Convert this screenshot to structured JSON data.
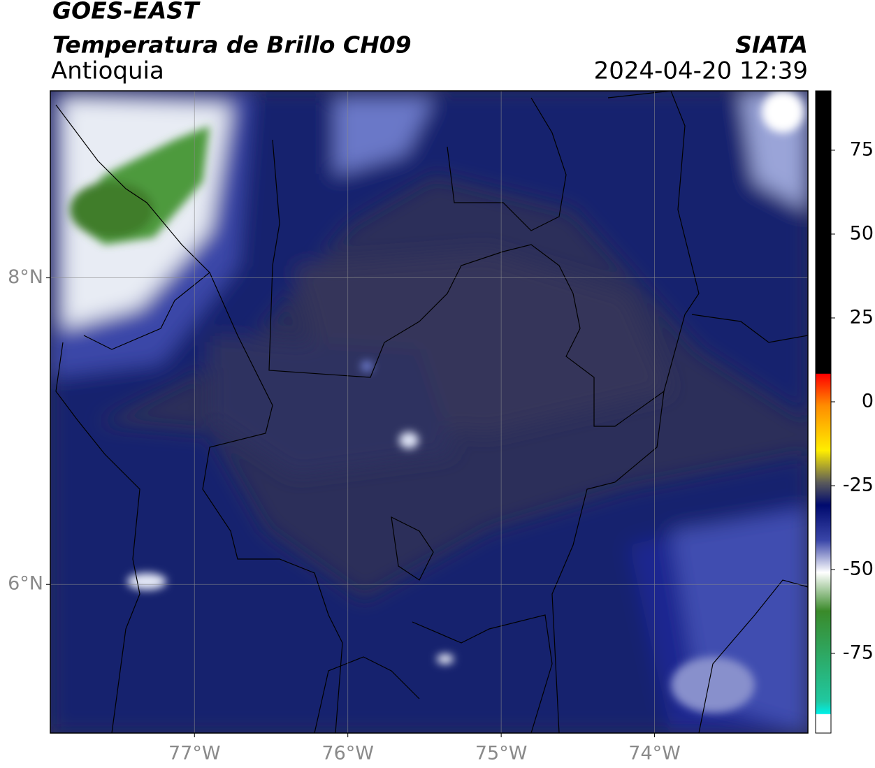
{
  "header": {
    "title": "GOES-EAST",
    "subtitle": "Temperatura de Brillo CH09",
    "region": "Antioquia",
    "source": "SIATA",
    "datetime": "2024-04-20 12:39"
  },
  "map": {
    "xlim": [
      -77.94,
      -73.0
    ],
    "ylim": [
      5.03,
      9.22
    ],
    "xticks": [
      {
        "value": -77,
        "label": "77°W"
      },
      {
        "value": -76,
        "label": "76°W"
      },
      {
        "value": -75,
        "label": "75°W"
      },
      {
        "value": -74,
        "label": "74°W"
      }
    ],
    "yticks": [
      {
        "value": 8,
        "label": "8°N"
      },
      {
        "value": 6,
        "label": "6°N"
      }
    ]
  },
  "colorbar": {
    "lim": [
      -98.75,
      92.7
    ],
    "ticks": [
      75,
      50,
      25,
      0,
      -25,
      -50,
      -75
    ]
  }
}
